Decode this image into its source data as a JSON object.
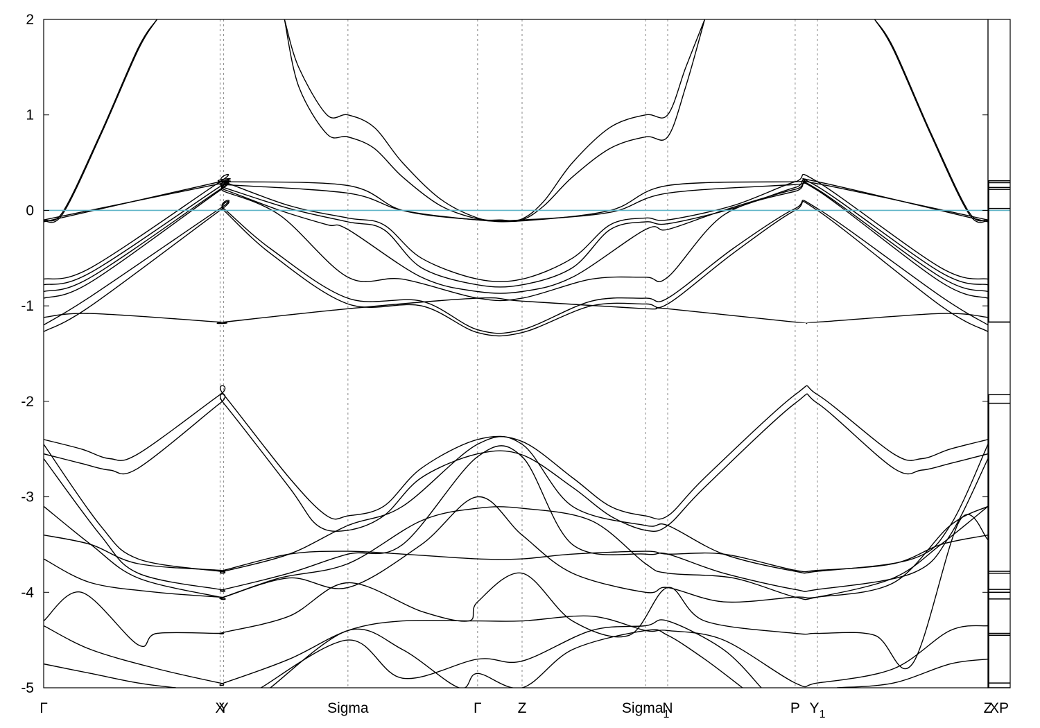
{
  "chart_data": {
    "type": "line",
    "title": "",
    "xlabel": "",
    "ylabel": "",
    "ylim": [
      -5,
      2
    ],
    "yticks": [
      2,
      1,
      0,
      -1,
      -2,
      -3,
      -4,
      -5
    ],
    "ytick_labels": [
      "2",
      "1",
      "0",
      "-1",
      "-2",
      "-3",
      "-4",
      "-5"
    ],
    "xlim": [
      0,
      1
    ],
    "kpoints": [
      {
        "label": "Γ",
        "x": 0.0,
        "sub": ""
      },
      {
        "label": "X",
        "x": 0.1868,
        "sub": ""
      },
      {
        "label": "Y",
        "x": 0.1906,
        "sub": ""
      },
      {
        "label": "Sigma",
        "x": 0.3222,
        "sub": ""
      },
      {
        "label": "Γ",
        "x": 0.4595,
        "sub": ""
      },
      {
        "label": "Z",
        "x": 0.5066,
        "sub": ""
      },
      {
        "label": "Sigma",
        "x": 0.6374,
        "sub": "1"
      },
      {
        "label": "N",
        "x": 0.6608,
        "sub": ""
      },
      {
        "label": "P",
        "x": 0.7958,
        "sub": ""
      },
      {
        "label": "Y",
        "x": 0.8194,
        "sub": "1"
      },
      {
        "label": "Z",
        "x": 1.0,
        "sub": ""
      }
    ],
    "fermi_level": 0,
    "fermi_color": "#5fb4c8",
    "band_color": "#000000",
    "grid": false,
    "side_panel": {
      "label": "XP",
      "levels": [
        0.31,
        0.29,
        0.24,
        0.22,
        0.02,
        -1.17,
        -1.93,
        -2.02,
        -3.78,
        -3.8,
        -3.97,
        -4.0,
        -4.07,
        -4.43,
        -4.45,
        -4.95
      ],
      "ranges": [
        [
          -1.17,
          0.31
        ],
        [
          -5.0,
          -1.93
        ]
      ]
    },
    "series": [
      {
        "x": [
          0,
          0.02,
          0.06,
          0.1,
          0.12
        ],
        "y": [
          -0.1,
          -0.02,
          0.8,
          1.7,
          2.0
        ]
      },
      {
        "x": [
          0,
          0.02,
          0.06,
          0.1,
          0.12
        ],
        "y": [
          -0.11,
          -0.04,
          0.78,
          1.68,
          2.0
        ]
      },
      {
        "x": [
          0.255,
          0.27,
          0.3,
          0.3222,
          0.35,
          0.38,
          0.42,
          0.4595,
          0.4832,
          0.5066,
          0.53,
          0.56,
          0.6,
          0.6374,
          0.6608,
          0.68,
          0.7
        ],
        "y": [
          2.0,
          1.5,
          1.0,
          1.0,
          0.87,
          0.5,
          0.12,
          -0.08,
          -0.1,
          -0.09,
          0.1,
          0.5,
          0.87,
          1.0,
          1.0,
          1.5,
          2.0
        ]
      },
      {
        "x": [
          0.255,
          0.27,
          0.3,
          0.3222,
          0.35,
          0.38,
          0.42,
          0.4595,
          0.4832,
          0.5066,
          0.53,
          0.56,
          0.6,
          0.6374,
          0.6608,
          0.68,
          0.7
        ],
        "y": [
          2.0,
          1.3,
          0.8,
          0.77,
          0.65,
          0.35,
          0.05,
          -0.09,
          -0.11,
          -0.1,
          0.05,
          0.35,
          0.65,
          0.77,
          0.77,
          1.3,
          2.0
        ]
      },
      {
        "x": [
          0.88,
          0.9,
          0.94,
          0.98,
          1.0
        ],
        "y": [
          2.0,
          1.7,
          0.8,
          -0.02,
          -0.1
        ]
      },
      {
        "x": [
          0.88,
          0.9,
          0.94,
          0.98,
          1.0
        ],
        "y": [
          2.0,
          1.68,
          0.78,
          -0.04,
          -0.11
        ]
      },
      {
        "x": [
          0,
          0.1868,
          0.1906,
          0.3222,
          0.38,
          0.4595,
          0.5066,
          0.6,
          0.6608,
          0.7958,
          0.8194,
          1.0
        ],
        "y": [
          -0.12,
          0.3,
          0.3,
          0.26,
          0.0,
          -0.1,
          -0.11,
          0.0,
          0.26,
          0.3,
          0.3,
          -0.12
        ]
      },
      {
        "x": [
          0,
          0.1868,
          0.1906,
          0.3222,
          0.38,
          0.4595,
          0.5066,
          0.6,
          0.6608,
          0.7958,
          0.8194,
          1.0
        ],
        "y": [
          -0.1,
          0.28,
          0.27,
          0.18,
          0.0,
          -0.1,
          -0.1,
          -0.02,
          0.18,
          0.27,
          0.28,
          -0.1
        ]
      },
      {
        "x": [
          0,
          0.05,
          0.1868,
          0.1906,
          0.26,
          0.3222,
          0.36,
          0.4,
          0.4595,
          0.5066,
          0.56,
          0.6,
          0.6374,
          0.6608,
          0.73,
          0.7958,
          0.8194,
          0.95,
          1.0
        ],
        "y": [
          -0.72,
          -0.6,
          0.3,
          0.3,
          0.05,
          -0.08,
          -0.15,
          -0.5,
          -0.72,
          -0.72,
          -0.5,
          -0.15,
          -0.08,
          -0.1,
          0.05,
          0.3,
          0.3,
          -0.6,
          -0.72
        ]
      },
      {
        "x": [
          0,
          0.05,
          0.1868,
          0.1906,
          0.26,
          0.3222,
          0.36,
          0.4,
          0.4595,
          0.5066,
          0.56,
          0.6,
          0.6374,
          0.6608,
          0.73,
          0.7958,
          0.8194,
          0.95,
          1.0
        ],
        "y": [
          -0.78,
          -0.65,
          0.25,
          0.24,
          0.02,
          -0.12,
          -0.2,
          -0.6,
          -0.78,
          -0.78,
          -0.6,
          -0.2,
          -0.12,
          -0.14,
          0.02,
          0.24,
          0.25,
          -0.65,
          -0.78
        ]
      },
      {
        "x": [
          0,
          0.05,
          0.1868,
          0.1906,
          0.25,
          0.3,
          0.3222,
          0.4,
          0.4595,
          0.5066,
          0.56,
          0.6374,
          0.6608,
          0.72,
          0.7958,
          0.8194,
          0.95,
          1.0
        ],
        "y": [
          -0.85,
          -0.7,
          0.22,
          0.22,
          0.0,
          -0.15,
          -0.2,
          -0.7,
          -0.85,
          -0.85,
          -0.7,
          -0.2,
          -0.2,
          0.0,
          0.22,
          0.22,
          -0.7,
          -0.85
        ]
      },
      {
        "x": [
          0,
          0.05,
          0.1868,
          0.1906,
          0.25,
          0.3222,
          0.38,
          0.4595,
          0.5066,
          0.58,
          0.6374,
          0.6608,
          0.72,
          0.7958,
          0.8194,
          0.95,
          1.0
        ],
        "y": [
          -0.92,
          -0.75,
          0.21,
          0.2,
          -0.05,
          -0.7,
          -0.72,
          -0.92,
          -0.92,
          -0.72,
          -0.7,
          -0.7,
          -0.05,
          0.2,
          0.21,
          -0.75,
          -0.92
        ]
      },
      {
        "x": [
          0,
          0.05,
          0.1868,
          0.1906,
          0.24,
          0.3222,
          0.4,
          0.4595,
          0.5066,
          0.58,
          0.6374,
          0.6608,
          0.73,
          0.7958,
          0.8194,
          0.95,
          1.0
        ],
        "y": [
          -1.2,
          -0.9,
          0.02,
          0.02,
          -0.4,
          -0.92,
          -0.95,
          -1.25,
          -1.25,
          -0.95,
          -0.92,
          -0.92,
          -0.4,
          0.02,
          0.02,
          -0.9,
          -1.2
        ]
      },
      {
        "x": [
          0,
          0.05,
          0.1868,
          0.1906,
          0.24,
          0.3222,
          0.4,
          0.4595,
          0.5066,
          0.58,
          0.6374,
          0.6608,
          0.73,
          0.7958,
          0.8194,
          0.95,
          1.0
        ],
        "y": [
          -1.27,
          -1.0,
          0.0,
          0.0,
          -0.45,
          -0.98,
          -1.0,
          -1.28,
          -1.28,
          -1.0,
          -0.98,
          -0.98,
          -0.45,
          0.0,
          0.0,
          -1.0,
          -1.27
        ]
      },
      {
        "x": [
          0,
          0.05,
          0.1868,
          0.1906,
          0.3222,
          0.4595,
          0.5066,
          0.6374,
          0.6608,
          0.7958,
          0.8194,
          0.95,
          1.0
        ],
        "y": [
          -1.12,
          -1.08,
          -1.17,
          -1.17,
          -1.03,
          -0.92,
          -0.95,
          -1.03,
          -1.03,
          -1.17,
          -1.17,
          -1.08,
          -1.12
        ]
      },
      {
        "x": [
          0,
          0.04,
          0.07,
          0.1,
          0.1868,
          0.1906,
          0.26,
          0.3,
          0.3222,
          0.36,
          0.4,
          0.4595,
          0.5066,
          0.56,
          0.6,
          0.6374,
          0.6608,
          0.7,
          0.7958,
          0.8194,
          0.9,
          0.93,
          0.96,
          1.0
        ],
        "y": [
          -2.4,
          -2.5,
          -2.6,
          -2.55,
          -1.93,
          -1.93,
          -2.8,
          -3.2,
          -3.2,
          -3.1,
          -2.7,
          -2.4,
          -2.42,
          -2.8,
          -3.1,
          -3.2,
          -3.2,
          -2.8,
          -1.93,
          -1.93,
          -2.55,
          -2.6,
          -2.5,
          -2.4
        ]
      },
      {
        "x": [
          0,
          0.04,
          0.07,
          0.1,
          0.1868,
          0.1906,
          0.26,
          0.29,
          0.3222,
          0.36,
          0.4,
          0.4595,
          0.5066,
          0.56,
          0.6,
          0.6374,
          0.6608,
          0.7,
          0.7958,
          0.8194,
          0.9,
          0.93,
          0.96,
          1.0
        ],
        "y": [
          -2.55,
          -2.65,
          -2.72,
          -2.7,
          -2.02,
          -2.02,
          -2.9,
          -3.3,
          -3.35,
          -3.2,
          -2.8,
          -2.55,
          -2.56,
          -2.9,
          -3.2,
          -3.35,
          -3.3,
          -2.9,
          -2.02,
          -2.02,
          -2.7,
          -2.72,
          -2.65,
          -2.55
        ]
      },
      {
        "x": [
          0,
          0.06,
          0.1,
          0.1868,
          0.1906,
          0.26,
          0.3222,
          0.38,
          0.4595,
          0.5066,
          0.56,
          0.6374,
          0.6608,
          0.72,
          0.7958,
          0.8194,
          0.92,
          0.96,
          1.0
        ],
        "y": [
          -2.45,
          -3.3,
          -3.65,
          -3.78,
          -3.78,
          -3.6,
          -3.3,
          -3.1,
          -2.45,
          -2.45,
          -3.1,
          -3.3,
          -3.3,
          -3.6,
          -3.78,
          -3.78,
          -3.65,
          -3.3,
          -2.45
        ]
      },
      {
        "x": [
          0,
          0.06,
          0.1,
          0.1868,
          0.1906,
          0.26,
          0.3222,
          0.38,
          0.4595,
          0.5066,
          0.56,
          0.6374,
          0.6608,
          0.72,
          0.7958,
          0.8194,
          0.92,
          0.96,
          1.0
        ],
        "y": [
          -2.6,
          -3.4,
          -3.8,
          -3.97,
          -3.97,
          -3.8,
          -3.6,
          -3.5,
          -2.58,
          -2.58,
          -3.5,
          -3.6,
          -3.6,
          -3.8,
          -3.97,
          -3.97,
          -3.8,
          -3.4,
          -2.6
        ]
      },
      {
        "x": [
          0,
          0.05,
          0.1,
          0.1868,
          0.1906,
          0.25,
          0.3222,
          0.4,
          0.4595,
          0.5066,
          0.58,
          0.6374,
          0.6608,
          0.73,
          0.7958,
          0.8194,
          0.9,
          0.95,
          1.0
        ],
        "y": [
          -3.1,
          -3.5,
          -3.85,
          -4.05,
          -4.05,
          -3.85,
          -3.7,
          -3.25,
          -3.12,
          -3.12,
          -3.25,
          -3.7,
          -3.8,
          -3.85,
          -4.05,
          -4.05,
          -3.85,
          -3.5,
          -3.1
        ]
      },
      {
        "x": [
          0,
          0.05,
          0.1,
          0.1868,
          0.1906,
          0.26,
          0.3222,
          0.38,
          0.4595,
          0.5066,
          0.56,
          0.6374,
          0.6608,
          0.72,
          0.7958,
          0.8194,
          0.9,
          0.95,
          1.0
        ],
        "y": [
          -3.4,
          -3.5,
          -3.7,
          -3.77,
          -3.77,
          -3.6,
          -3.57,
          -3.6,
          -3.65,
          -3.65,
          -3.6,
          -3.57,
          -3.6,
          -3.6,
          -3.77,
          -3.77,
          -3.7,
          -3.5,
          -3.4
        ]
      },
      {
        "x": [
          0,
          0.05,
          0.12,
          0.1868,
          0.1906,
          0.26,
          0.3222,
          0.4,
          0.4595,
          0.5066,
          0.56,
          0.6374,
          0.6608,
          0.72,
          0.7958,
          0.8194,
          0.9,
          0.96,
          1.0
        ],
        "y": [
          -3.65,
          -3.9,
          -4.0,
          -4.05,
          -4.05,
          -3.85,
          -3.95,
          -3.5,
          -3.0,
          -3.4,
          -3.8,
          -4.0,
          -3.95,
          -4.1,
          -4.05,
          -4.05,
          -3.9,
          -3.3,
          -3.1
        ]
      },
      {
        "x": [
          0,
          0.04,
          0.1,
          0.12,
          0.1868,
          0.1906,
          0.26,
          0.3222,
          0.4,
          0.45,
          0.4595,
          0.5066,
          0.56,
          0.62,
          0.6608,
          0.7,
          0.7958,
          0.8194,
          0.88,
          0.92,
          0.97,
          1.0
        ],
        "y": [
          -4.3,
          -4.0,
          -4.55,
          -4.43,
          -4.43,
          -4.42,
          -4.25,
          -3.9,
          -4.2,
          -4.3,
          -4.1,
          -3.8,
          -4.3,
          -4.45,
          -3.95,
          -4.3,
          -4.43,
          -4.43,
          -4.45,
          -4.75,
          -3.25,
          -3.45
        ]
      },
      {
        "x": [
          0,
          0.05,
          0.12,
          0.1868,
          0.1906,
          0.26,
          0.3222,
          0.38,
          0.4595,
          0.5066,
          0.58,
          0.6374,
          0.6608,
          0.72,
          0.7958,
          0.8194,
          0.9,
          0.96,
          1.0
        ],
        "y": [
          -4.35,
          -4.6,
          -4.8,
          -4.95,
          -4.95,
          -4.7,
          -4.4,
          -4.3,
          -4.3,
          -4.3,
          -4.25,
          -4.4,
          -4.4,
          -4.5,
          -4.95,
          -4.95,
          -4.8,
          -4.4,
          -4.35
        ]
      },
      {
        "x": [
          0.23,
          0.3222,
          0.38,
          0.4595,
          0.5066,
          0.58,
          0.6374,
          0.6608,
          0.72,
          0.76
        ],
        "y": [
          -5.0,
          -4.5,
          -4.9,
          -4.7,
          -4.72,
          -4.4,
          -4.35,
          -4.3,
          -4.6,
          -5.0
        ]
      },
      {
        "x": [
          0.24,
          0.3222,
          0.38,
          0.44,
          0.4595,
          0.5066,
          0.56,
          0.6374,
          0.6608,
          0.7,
          0.74
        ],
        "y": [
          -5.0,
          -4.4,
          -4.6,
          -5.0,
          -4.85,
          -5.0,
          -4.6,
          -4.4,
          -4.45,
          -4.7,
          -5.0
        ]
      },
      {
        "x": [
          0,
          0.05,
          0.1,
          0.14
        ],
        "y": [
          -4.75,
          -4.85,
          -4.95,
          -5.0
        ]
      },
      {
        "x": [
          0.84,
          0.9,
          0.96,
          1.0
        ],
        "y": [
          -5.0,
          -4.95,
          -4.75,
          -4.7
        ]
      }
    ]
  }
}
